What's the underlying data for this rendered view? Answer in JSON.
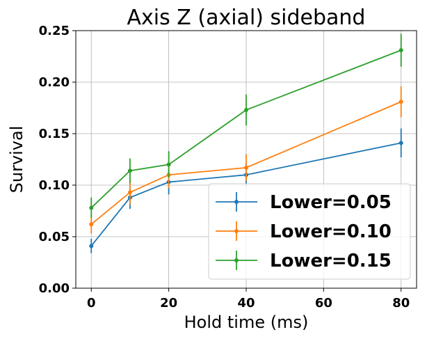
{
  "chart_data": {
    "type": "line",
    "title": "Axis Z (axial) sideband",
    "xlabel": "Hold time (ms)",
    "ylabel": "Survival",
    "xlim": [
      -4,
      84
    ],
    "ylim": [
      0,
      0.25
    ],
    "xticks": [
      0,
      20,
      40,
      60,
      80
    ],
    "yticks": [
      0.0,
      0.05,
      0.1,
      0.15,
      0.2,
      0.25
    ],
    "xtick_labels": [
      "0",
      "20",
      "40",
      "60",
      "80"
    ],
    "ytick_labels": [
      "0.00",
      "0.05",
      "0.10",
      "0.15",
      "0.20",
      "0.25"
    ],
    "grid": true,
    "legend_position": "lower-right",
    "x": [
      0,
      10,
      20,
      40,
      80
    ],
    "series": [
      {
        "name": "Lower=0.05",
        "color": "#1f77b4",
        "values": [
          0.041,
          0.088,
          0.103,
          0.11,
          0.141
        ],
        "errors": [
          0.007,
          0.011,
          0.012,
          0.011,
          0.014
        ]
      },
      {
        "name": "Lower=0.10",
        "color": "#ff7f0e",
        "values": [
          0.062,
          0.093,
          0.11,
          0.117,
          0.181
        ],
        "errors": [
          0.009,
          0.012,
          0.013,
          0.013,
          0.015
        ]
      },
      {
        "name": "Lower=0.15",
        "color": "#2ca02c",
        "values": [
          0.078,
          0.114,
          0.12,
          0.173,
          0.231
        ],
        "errors": [
          0.01,
          0.012,
          0.013,
          0.015,
          0.016
        ]
      }
    ]
  }
}
